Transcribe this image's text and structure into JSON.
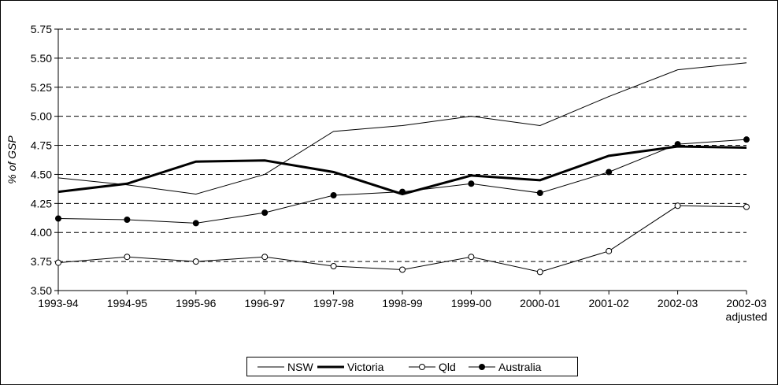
{
  "chart_data": {
    "type": "line",
    "y_label": "% of GSP",
    "categories": [
      "1993-94",
      "1994-95",
      "1995-96",
      "1996-97",
      "1997-98",
      "1998-99",
      "1999-00",
      "2000-01",
      "2001-02",
      "2002-03",
      "2002-03\nadjusted"
    ],
    "series": [
      {
        "name": "NSW",
        "color": "#000000",
        "line_width": 1,
        "marker": "none",
        "values": [
          4.47,
          4.41,
          4.33,
          4.5,
          4.87,
          4.92,
          5.0,
          4.92,
          5.17,
          5.4,
          5.46
        ]
      },
      {
        "name": "Victoria",
        "color": "#000000",
        "line_width": 3,
        "marker": "none",
        "values": [
          4.35,
          4.42,
          4.61,
          4.62,
          4.52,
          4.33,
          4.49,
          4.45,
          4.66,
          4.74,
          4.73
        ]
      },
      {
        "name": "Qld",
        "color": "#000000",
        "line_width": 1,
        "marker": "open-circle",
        "values": [
          3.74,
          3.79,
          3.75,
          3.79,
          3.71,
          3.68,
          3.79,
          3.66,
          3.84,
          4.23,
          4.22
        ]
      },
      {
        "name": "Australia",
        "color": "#000000",
        "line_width": 1,
        "marker": "filled-circle",
        "values": [
          4.12,
          4.11,
          4.08,
          4.17,
          4.32,
          4.35,
          4.42,
          4.34,
          4.52,
          4.76,
          4.8
        ]
      }
    ],
    "ylim": [
      3.5,
      5.75
    ],
    "yticks": [
      {
        "value": 3.5,
        "label": "3.50"
      },
      {
        "value": 3.75,
        "label": "3.75"
      },
      {
        "value": 4.0,
        "label": "4.00"
      },
      {
        "value": 4.25,
        "label": "4.25"
      },
      {
        "value": 4.5,
        "label": "4.50"
      },
      {
        "value": 4.75,
        "label": "4.75"
      },
      {
        "value": 5.0,
        "label": "5.00"
      },
      {
        "value": 5.25,
        "label": "5.25"
      },
      {
        "value": 5.5,
        "label": "5.50"
      },
      {
        "value": 5.75,
        "label": "5.75"
      }
    ],
    "grid": true,
    "grid_style": "dashed",
    "legend": "bottom"
  }
}
